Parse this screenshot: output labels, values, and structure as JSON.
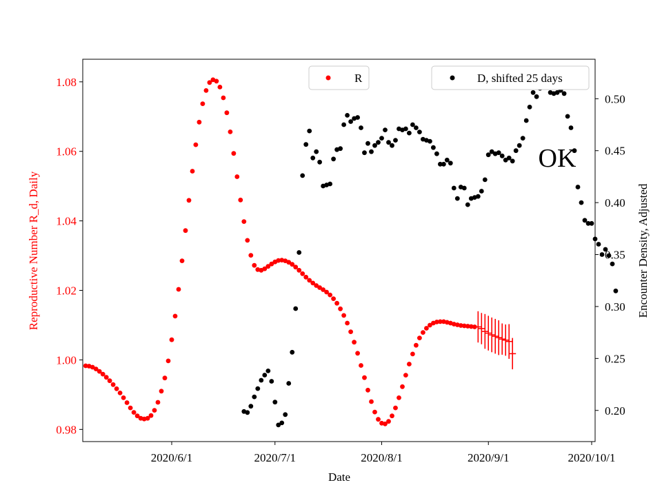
{
  "chart_data": {
    "type": "scatter",
    "xlabel": "Date",
    "ylabel_left": "Reproductive Number R_d, Daily",
    "ylabel_right": "Encounter Density, Adjusted",
    "annotation": "OK",
    "x_ticks": [
      {
        "label": "2020/6/1",
        "day": 31
      },
      {
        "label": "2020/7/1",
        "day": 61
      },
      {
        "label": "2020/8/1",
        "day": 92
      },
      {
        "label": "2020/9/1",
        "day": 123
      },
      {
        "label": "2020/10/1",
        "day": 153
      }
    ],
    "x_range_days": [
      0,
      155
    ],
    "y_left": {
      "lim": [
        0.9765,
        1.0865
      ],
      "ticks": [
        "0.98",
        "1.00",
        "1.02",
        "1.04",
        "1.06",
        "1.08"
      ],
      "color": "#ff0000"
    },
    "y_right": {
      "lim": [
        0.17,
        0.538
      ],
      "ticks": [
        "0.20",
        "0.25",
        "0.30",
        "0.35",
        "0.40",
        "0.45",
        "0.50"
      ],
      "color": "#000000"
    },
    "series": [
      {
        "name": "R",
        "axis": "left",
        "color": "#ff0000",
        "legend": "R",
        "legend_position": "top-center",
        "points": [
          [
            6,
            0.9983
          ],
          [
            7,
            0.9982
          ],
          [
            8,
            0.9979
          ],
          [
            9,
            0.9974
          ],
          [
            10,
            0.9967
          ],
          [
            11,
            0.9959
          ],
          [
            12,
            0.995
          ],
          [
            13,
            0.994
          ],
          [
            14,
            0.9929
          ],
          [
            15,
            0.9917
          ],
          [
            16,
            0.9905
          ],
          [
            17,
            0.9891
          ],
          [
            18,
            0.9877
          ],
          [
            19,
            0.9862
          ],
          [
            20,
            0.9849
          ],
          [
            21,
            0.9839
          ],
          [
            22,
            0.9832
          ],
          [
            23,
            0.983
          ],
          [
            24,
            0.9832
          ],
          [
            25,
            0.984
          ],
          [
            26,
            0.9855
          ],
          [
            27,
            0.9878
          ],
          [
            28,
            0.991
          ],
          [
            29,
            0.9948
          ],
          [
            30,
            0.9997
          ],
          [
            31,
            1.0058
          ],
          [
            32,
            1.0126
          ],
          [
            33,
            1.0203
          ],
          [
            34,
            1.0285
          ],
          [
            35,
            1.0372
          ],
          [
            36,
            1.0459
          ],
          [
            37,
            1.0543
          ],
          [
            38,
            1.0619
          ],
          [
            39,
            1.0684
          ],
          [
            40,
            1.0737
          ],
          [
            41,
            1.0775
          ],
          [
            42,
            1.0798
          ],
          [
            43,
            1.0806
          ],
          [
            44,
            1.0802
          ],
          [
            45,
            1.0785
          ],
          [
            46,
            1.0754
          ],
          [
            47,
            1.0711
          ],
          [
            48,
            1.0656
          ],
          [
            49,
            1.0594
          ],
          [
            50,
            1.0527
          ],
          [
            51,
            1.046
          ],
          [
            52,
            1.0398
          ],
          [
            53,
            1.0344
          ],
          [
            54,
            1.0301
          ],
          [
            55,
            1.0272
          ],
          [
            56,
            1.026
          ],
          [
            57,
            1.0258
          ],
          [
            58,
            1.0262
          ],
          [
            59,
            1.0269
          ],
          [
            60,
            1.0276
          ],
          [
            61,
            1.0282
          ],
          [
            62,
            1.0286
          ],
          [
            63,
            1.0287
          ],
          [
            64,
            1.0285
          ],
          [
            65,
            1.0281
          ],
          [
            66,
            1.0275
          ],
          [
            67,
            1.0267
          ],
          [
            68,
            1.0258
          ],
          [
            69,
            1.0248
          ],
          [
            70,
            1.0238
          ],
          [
            71,
            1.0229
          ],
          [
            72,
            1.0221
          ],
          [
            73,
            1.0214
          ],
          [
            74,
            1.0208
          ],
          [
            75,
            1.0202
          ],
          [
            76,
            1.0195
          ],
          [
            77,
            1.0187
          ],
          [
            78,
            1.0176
          ],
          [
            79,
            1.0163
          ],
          [
            80,
            1.0147
          ],
          [
            81,
            1.0128
          ],
          [
            82,
            1.0106
          ],
          [
            83,
            1.0081
          ],
          [
            84,
            1.0051
          ],
          [
            85,
            1.0019
          ],
          [
            86,
            0.9984
          ],
          [
            87,
            0.9949
          ],
          [
            88,
            0.9913
          ],
          [
            89,
            0.988
          ],
          [
            90,
            0.985
          ],
          [
            91,
            0.9829
          ],
          [
            92,
            0.9818
          ],
          [
            93,
            0.9816
          ],
          [
            94,
            0.9823
          ],
          [
            95,
            0.9839
          ],
          [
            96,
            0.9862
          ],
          [
            97,
            0.9891
          ],
          [
            98,
            0.9923
          ],
          [
            99,
            0.9956
          ],
          [
            100,
            0.9988
          ],
          [
            101,
            1.0017
          ],
          [
            102,
            1.0042
          ],
          [
            103,
            1.0063
          ],
          [
            104,
            1.0079
          ],
          [
            105,
            1.0091
          ],
          [
            106,
            1.01
          ],
          [
            107,
            1.0106
          ],
          [
            108,
            1.0109
          ],
          [
            109,
            1.011
          ],
          [
            110,
            1.011
          ],
          [
            111,
            1.0108
          ],
          [
            112,
            1.0106
          ],
          [
            113,
            1.0103
          ],
          [
            114,
            1.0101
          ],
          [
            115,
            1.0099
          ],
          [
            116,
            1.0098
          ],
          [
            117,
            1.0097
          ],
          [
            118,
            1.0096
          ],
          [
            119,
            1.0095
          ]
        ],
        "error_bars": [
          [
            120,
            1.0095,
            0.0045
          ],
          [
            121,
            1.009,
            0.0045
          ],
          [
            122,
            1.0082,
            0.005
          ],
          [
            123,
            1.0077,
            0.005
          ],
          [
            124,
            1.0072,
            0.005
          ],
          [
            125,
            1.0068,
            0.005
          ],
          [
            126,
            1.0064,
            0.005
          ],
          [
            127,
            1.006,
            0.0045
          ],
          [
            128,
            1.0057,
            0.0045
          ],
          [
            129,
            1.0053,
            0.005
          ],
          [
            130,
            1.0018,
            0.0045
          ]
        ]
      },
      {
        "name": "D, shifted 25 days",
        "axis": "right",
        "color": "#000000",
        "legend": "D, shifted 25 days",
        "legend_position": "top-right",
        "points": [
          [
            52,
            0.199
          ],
          [
            53,
            0.198
          ],
          [
            54,
            0.204
          ],
          [
            55,
            0.213
          ],
          [
            56,
            0.221
          ],
          [
            57,
            0.229
          ],
          [
            58,
            0.234
          ],
          [
            59,
            0.238
          ],
          [
            60,
            0.228
          ],
          [
            61,
            0.208
          ],
          [
            62,
            0.186
          ],
          [
            63,
            0.188
          ],
          [
            64,
            0.196
          ],
          [
            65,
            0.226
          ],
          [
            66,
            0.256
          ],
          [
            67,
            0.298
          ],
          [
            68,
            0.352
          ],
          [
            69,
            0.426
          ],
          [
            70,
            0.456
          ],
          [
            71,
            0.469
          ],
          [
            72,
            0.443
          ],
          [
            73,
            0.449
          ],
          [
            74,
            0.439
          ],
          [
            75,
            0.416
          ],
          [
            76,
            0.417
          ],
          [
            77,
            0.418
          ],
          [
            78,
            0.442
          ],
          [
            79,
            0.451
          ],
          [
            80,
            0.452
          ],
          [
            81,
            0.475
          ],
          [
            82,
            0.484
          ],
          [
            83,
            0.478
          ],
          [
            84,
            0.481
          ],
          [
            85,
            0.482
          ],
          [
            86,
            0.472
          ],
          [
            87,
            0.448
          ],
          [
            88,
            0.457
          ],
          [
            89,
            0.449
          ],
          [
            90,
            0.455
          ],
          [
            91,
            0.458
          ],
          [
            92,
            0.462
          ],
          [
            93,
            0.47
          ],
          [
            94,
            0.458
          ],
          [
            95,
            0.455
          ],
          [
            96,
            0.46
          ],
          [
            97,
            0.471
          ],
          [
            98,
            0.47
          ],
          [
            99,
            0.471
          ],
          [
            100,
            0.467
          ],
          [
            101,
            0.475
          ],
          [
            102,
            0.472
          ],
          [
            103,
            0.468
          ],
          [
            104,
            0.461
          ],
          [
            105,
            0.46
          ],
          [
            106,
            0.459
          ],
          [
            107,
            0.453
          ],
          [
            108,
            0.447
          ],
          [
            109,
            0.437
          ],
          [
            110,
            0.437
          ],
          [
            111,
            0.441
          ],
          [
            112,
            0.438
          ],
          [
            113,
            0.414
          ],
          [
            114,
            0.404
          ],
          [
            115,
            0.415
          ],
          [
            116,
            0.414
          ],
          [
            117,
            0.398
          ],
          [
            118,
            0.404
          ],
          [
            119,
            0.405
          ],
          [
            120,
            0.406
          ],
          [
            121,
            0.411
          ],
          [
            122,
            0.422
          ],
          [
            123,
            0.446
          ],
          [
            124,
            0.449
          ],
          [
            125,
            0.447
          ],
          [
            126,
            0.448
          ],
          [
            127,
            0.445
          ],
          [
            128,
            0.441
          ],
          [
            129,
            0.443
          ],
          [
            130,
            0.44
          ],
          [
            131,
            0.45
          ],
          [
            132,
            0.455
          ],
          [
            133,
            0.462
          ],
          [
            134,
            0.479
          ],
          [
            135,
            0.492
          ],
          [
            136,
            0.506
          ],
          [
            137,
            0.502
          ],
          [
            138,
            0.51
          ],
          [
            139,
            0.518
          ],
          [
            140,
            0.521
          ],
          [
            141,
            0.506
          ],
          [
            142,
            0.505
          ],
          [
            143,
            0.506
          ],
          [
            144,
            0.508
          ],
          [
            145,
            0.505
          ],
          [
            146,
            0.483
          ],
          [
            147,
            0.472
          ],
          [
            148,
            0.45
          ],
          [
            149,
            0.415
          ],
          [
            150,
            0.4
          ],
          [
            151,
            0.383
          ],
          [
            152,
            0.38
          ],
          [
            153,
            0.38
          ],
          [
            154,
            0.365
          ],
          [
            155,
            0.36
          ],
          [
            156,
            0.35
          ],
          [
            157,
            0.355
          ],
          [
            158,
            0.349
          ],
          [
            159,
            0.341
          ],
          [
            160,
            0.315
          ]
        ]
      }
    ]
  }
}
